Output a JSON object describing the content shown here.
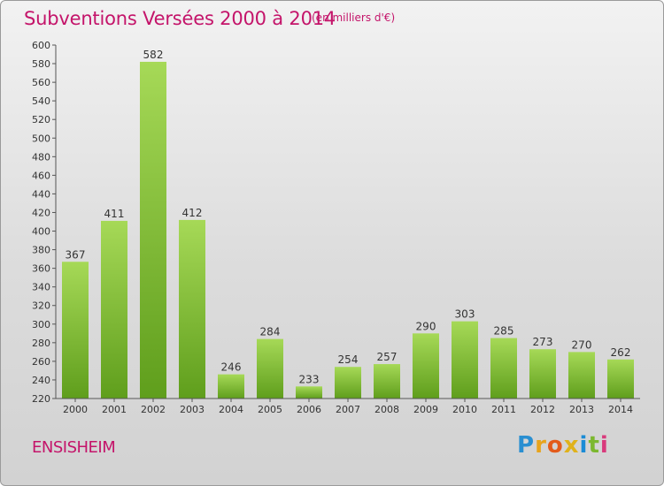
{
  "title": "Subventions Versées 2000 à 2014",
  "subtitle": "(en milliers d'€)",
  "commune": "ENSISHEIM",
  "logo": {
    "letters": [
      "P",
      "r",
      "o",
      "x",
      "i",
      "t",
      "i"
    ],
    "colors": [
      "#2a8fd1",
      "#e8a41c",
      "#e35b1b",
      "#e0b21b",
      "#1a8bd6",
      "#7cb82f",
      "#d93a7c"
    ]
  },
  "colors": {
    "bar_top": "#a6d957",
    "bar_bottom": "#5f9e1c",
    "title": "#c4146a",
    "axis": "#333333"
  },
  "chart_data": {
    "type": "bar",
    "title": "Subventions Versées 2000 à 2014",
    "subtitle": "(en milliers d'€)",
    "categories": [
      "2000",
      "2001",
      "2002",
      "2003",
      "2004",
      "2005",
      "2006",
      "2007",
      "2008",
      "2009",
      "2010",
      "2011",
      "2012",
      "2013",
      "2014"
    ],
    "values": [
      367,
      411,
      582,
      412,
      246,
      284,
      233,
      254,
      257,
      290,
      303,
      285,
      273,
      270,
      262
    ],
    "ylim": [
      220,
      600
    ],
    "yticks": [
      220,
      240,
      260,
      280,
      300,
      320,
      340,
      360,
      380,
      400,
      420,
      440,
      460,
      480,
      500,
      520,
      540,
      560,
      580,
      600
    ],
    "xlabel": "",
    "ylabel": "",
    "grid": false,
    "data_labels": true
  }
}
